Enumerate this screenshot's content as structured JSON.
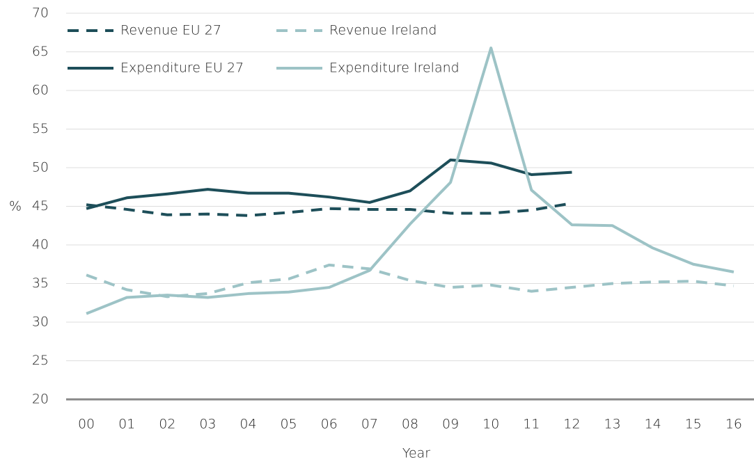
{
  "chart_data": {
    "type": "line",
    "xlabel": "Year",
    "ylabel": "%",
    "categories": [
      "00",
      "01",
      "02",
      "03",
      "04",
      "05",
      "06",
      "07",
      "08",
      "09",
      "10",
      "11",
      "12",
      "13",
      "14",
      "15",
      "16"
    ],
    "series": [
      {
        "name": "Revenue EU 27",
        "color": "#1d4e59",
        "dash": true,
        "values": [
          45.2,
          44.6,
          43.9,
          44.0,
          43.8,
          44.2,
          44.7,
          44.6,
          44.6,
          44.1,
          44.1,
          44.5,
          45.4,
          null,
          null,
          null,
          null
        ]
      },
      {
        "name": "Revenue Ireland",
        "color": "#9dc3c6",
        "dash": true,
        "values": [
          36.1,
          34.2,
          33.3,
          33.7,
          35.1,
          35.6,
          37.4,
          36.9,
          35.4,
          34.5,
          34.8,
          34.0,
          34.5,
          35.0,
          35.2,
          35.3,
          34.7
        ]
      },
      {
        "name": "Expenditure EU 27",
        "color": "#1d4e59",
        "dash": false,
        "values": [
          44.7,
          46.1,
          46.6,
          47.2,
          46.7,
          46.7,
          46.2,
          45.5,
          47.0,
          51.0,
          50.6,
          49.1,
          49.4,
          null,
          null,
          null,
          null
        ]
      },
      {
        "name": "Expenditure Ireland",
        "color": "#9dc3c6",
        "dash": false,
        "values": [
          31.1,
          33.2,
          33.5,
          33.2,
          33.7,
          33.9,
          34.5,
          36.7,
          42.7,
          48.1,
          65.5,
          47.1,
          42.6,
          42.5,
          39.6,
          37.5,
          36.5
        ]
      }
    ],
    "ylim": [
      20,
      70
    ],
    "yticks": [
      20,
      25,
      30,
      35,
      40,
      45,
      50,
      55,
      60,
      65,
      70
    ],
    "grid": true
  }
}
